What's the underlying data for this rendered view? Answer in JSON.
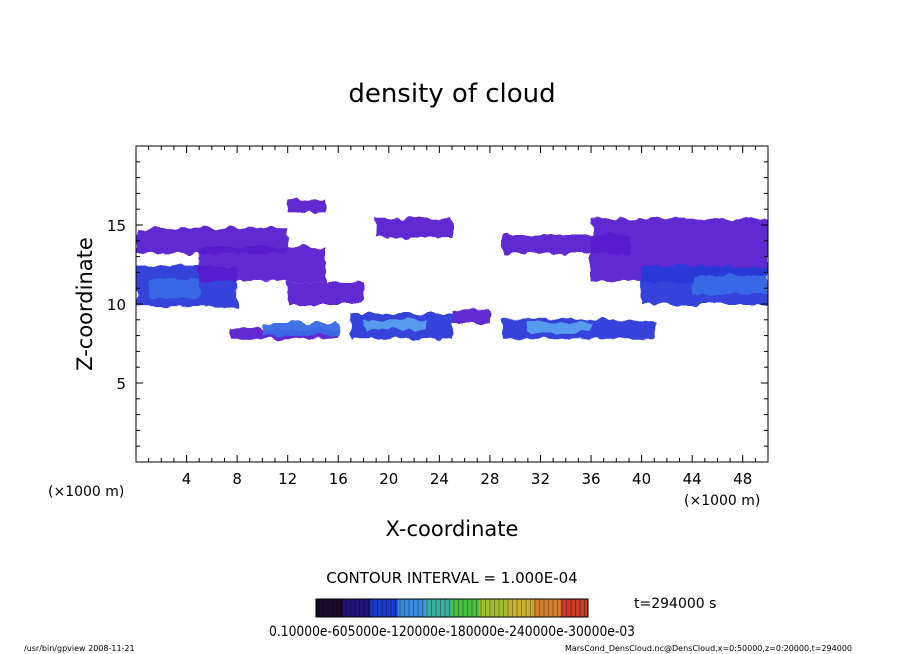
{
  "chart_data": {
    "type": "heatmap",
    "title": "density of cloud",
    "xlabel": "X-coordinate",
    "ylabel": "Z-coordinate",
    "x_unit_left": "(×1000 m)",
    "x_unit_right": "(×1000 m)",
    "xlim": [
      0,
      50
    ],
    "ylim": [
      0,
      20
    ],
    "xticks": [
      4,
      8,
      12,
      16,
      20,
      24,
      28,
      32,
      36,
      40,
      44,
      48
    ],
    "yticks": [
      5,
      10,
      15
    ],
    "contour_interval": "CONTOUR INTERVAL = 1.000E-04",
    "time_label": "t=294000 s",
    "colorbar_label": "0.10000e-605000e-120000e-180000e-240000e-30000e-03",
    "colorbar_colors": [
      "#1a0a2a",
      "#20147a",
      "#1a3cc8",
      "#3a8ae0",
      "#3ab0a0",
      "#4ac040",
      "#a0c030",
      "#c8b030",
      "#d08030",
      "#c83a2a"
    ],
    "footer_left": "/usr/bin/gpview   2008-11-21",
    "footer_right": "MarsCond_DensCloud.nc@DensCloud,x=0:50000,z=0:20000,t=294000",
    "cloud_layers": [
      {
        "x0": 0,
        "x1": 12,
        "z0": 13.2,
        "z1": 14.8,
        "level": 1
      },
      {
        "x0": 0,
        "x1": 8,
        "z0": 9.8,
        "z1": 12.4,
        "level": 2
      },
      {
        "x0": 1,
        "x1": 5,
        "z0": 10.4,
        "z1": 11.6,
        "level": 3
      },
      {
        "x0": 5,
        "x1": 15,
        "z0": 11.4,
        "z1": 13.6,
        "level": 1
      },
      {
        "x0": 12,
        "x1": 18,
        "z0": 10.0,
        "z1": 11.4,
        "level": 1
      },
      {
        "x0": 12,
        "x1": 15,
        "z0": 15.8,
        "z1": 16.6,
        "level": 1
      },
      {
        "x0": 19,
        "x1": 25,
        "z0": 14.2,
        "z1": 15.4,
        "level": 1
      },
      {
        "x0": 7.5,
        "x1": 16,
        "z0": 7.8,
        "z1": 8.4,
        "level": 1
      },
      {
        "x0": 10,
        "x1": 16,
        "z0": 8.0,
        "z1": 8.8,
        "level": 3
      },
      {
        "x0": 17,
        "x1": 25,
        "z0": 7.8,
        "z1": 9.4,
        "level": 2
      },
      {
        "x0": 18,
        "x1": 23,
        "z0": 8.4,
        "z1": 9.0,
        "level": 4
      },
      {
        "x0": 25,
        "x1": 28,
        "z0": 8.8,
        "z1": 9.6,
        "level": 1
      },
      {
        "x0": 29,
        "x1": 41,
        "z0": 7.8,
        "z1": 9.0,
        "level": 2
      },
      {
        "x0": 31,
        "x1": 36,
        "z0": 8.2,
        "z1": 8.8,
        "level": 4
      },
      {
        "x0": 29,
        "x1": 39,
        "z0": 13.2,
        "z1": 14.4,
        "level": 1
      },
      {
        "x0": 36,
        "x1": 50,
        "z0": 11.4,
        "z1": 15.4,
        "level": 1
      },
      {
        "x0": 40,
        "x1": 50,
        "z0": 10.0,
        "z1": 12.4,
        "level": 2
      },
      {
        "x0": 44,
        "x1": 50,
        "z0": 10.6,
        "z1": 11.8,
        "level": 3
      }
    ]
  }
}
